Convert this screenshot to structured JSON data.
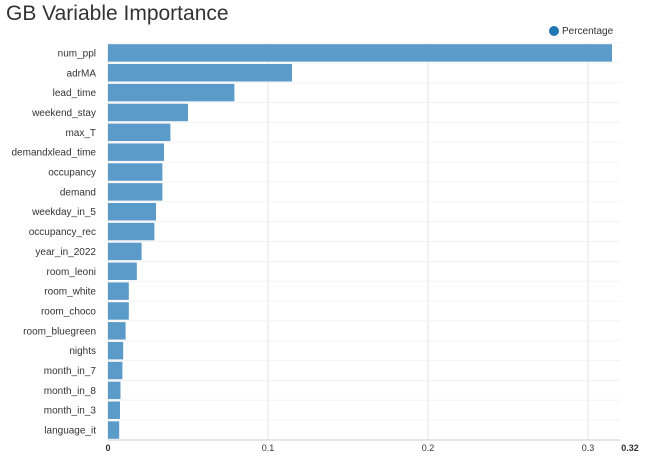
{
  "chart_data": {
    "type": "bar",
    "orientation": "horizontal",
    "title": "GB Variable Importance",
    "xlabel": "",
    "ylabel": "",
    "categories": [
      "num_ppl",
      "adrMA",
      "lead_time",
      "weekend_stay",
      "max_T",
      "demandxlead_time",
      "occupancy",
      "demand",
      "weekday_in_5",
      "occupancy_rec",
      "year_in_2022",
      "room_leoni",
      "room_white",
      "room_choco",
      "room_bluegreen",
      "nights",
      "month_in_7",
      "month_in_8",
      "month_in_3",
      "language_it"
    ],
    "series": [
      {
        "name": "Percentage",
        "values": [
          0.315,
          0.115,
          0.079,
          0.05,
          0.039,
          0.035,
          0.034,
          0.034,
          0.03,
          0.029,
          0.021,
          0.018,
          0.013,
          0.013,
          0.011,
          0.0095,
          0.009,
          0.0078,
          0.0075,
          0.007
        ],
        "color": "#5b9bc9"
      }
    ],
    "xlim": [
      0,
      0.32
    ],
    "xticks": [
      0,
      0.1,
      0.2,
      0.3,
      0.32
    ],
    "xtick_labels": [
      "0",
      "0.1",
      "0.2",
      "0.3",
      "0.32"
    ],
    "grid": true,
    "legend_position": "top-right"
  },
  "colors": {
    "legend_marker": "#1f77b4",
    "grid": "#e6e6e6",
    "axis": "#cccccc"
  }
}
